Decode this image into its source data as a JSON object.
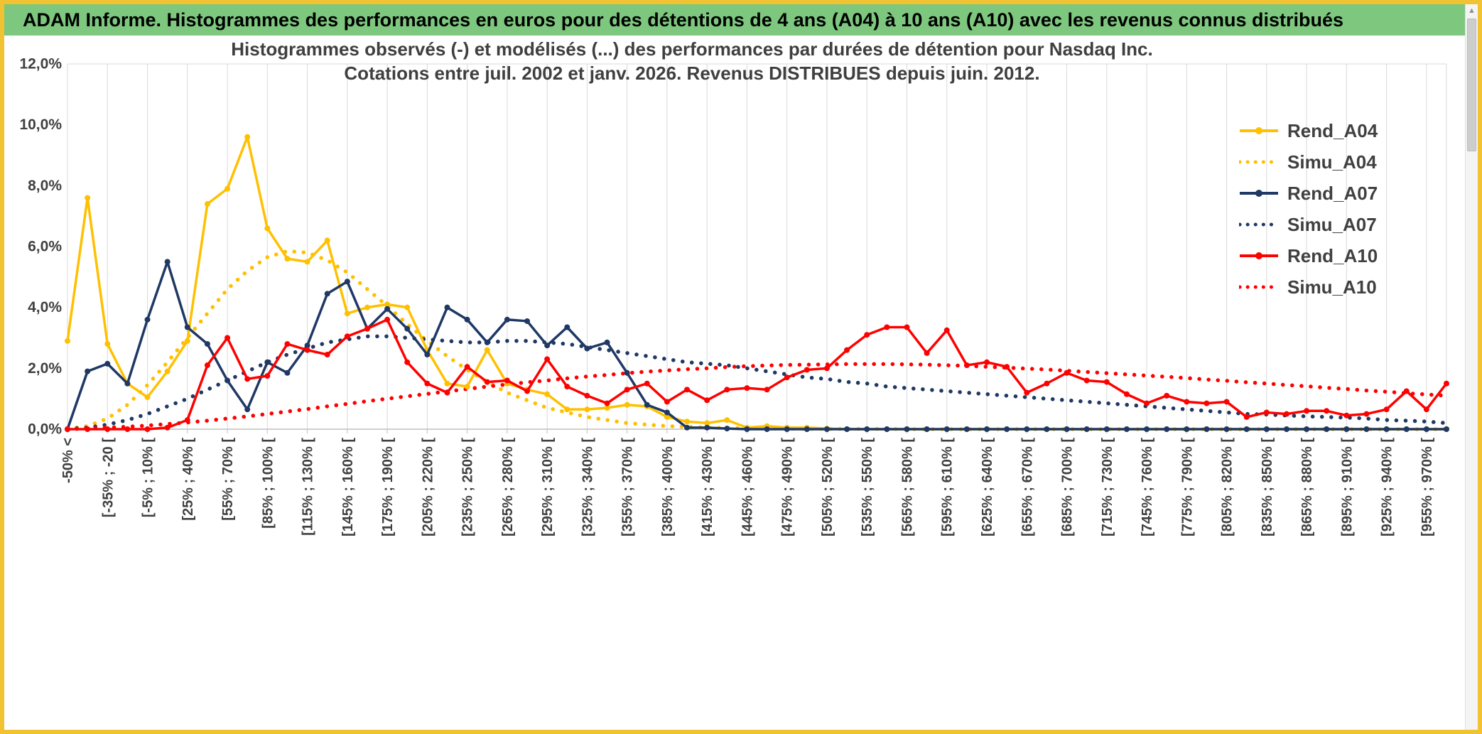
{
  "header": {
    "title": "ADAM Informe. Histogrammes des performances en euros pour des détentions de 4 ans (A04) à 10 ans (A10) avec les revenus connus distribués"
  },
  "colors": {
    "frame_border": "#F1C232",
    "header_bg": "#7DC87E",
    "header_text": "#000000",
    "grid": "#D9D9D9",
    "axis": "#BFBFBF",
    "text": "#404040",
    "gold": "#FFC000",
    "navy": "#1F3864",
    "red": "#FF0000"
  },
  "scrollbar": {
    "up_arrow": "▲"
  },
  "chart_data": {
    "type": "line",
    "title_line1": "Histogrammes observés (-) et modélisés (...) des performances par durées de détention pour Nasdaq Inc.",
    "title_line2": "Cotations entre juil. 2002 et janv. 2026. Revenus DISTRIBUES depuis juin. 2012.",
    "ylim": [
      0,
      12
    ],
    "y_ticks": [
      "12,0%",
      "10,0%",
      "8,0%",
      "6,0%",
      "4,0%",
      "2,0%",
      "0,0%"
    ],
    "grid": "vertical",
    "legend_position": "right",
    "bin_width_pct": 15,
    "bins_per_label": 2,
    "x_tick_labels": [
      "-50% <",
      "[-35% ; -20 [",
      "[-5% ; 10% [",
      "[25% ; 40% [",
      "[55% ; 70% [",
      "[85% ; 100% [",
      "[115% ; 130% [",
      "[145% ; 160% [",
      "[175% ; 190% [",
      "[205% ; 220% [",
      "[235% ; 250% [",
      "[265% ; 280% [",
      "[295% ; 310% [",
      "[325% ; 340% [",
      "[355% ; 370% [",
      "[385% ; 400% [",
      "[415% ; 430% [",
      "[445% ; 460% [",
      "[475% ; 490% [",
      "[505% ; 520% [",
      "[535% ; 550% [",
      "[565% ; 580% [",
      "[595% ; 610% [",
      "[625% ; 640% [",
      "[655% ; 670% [",
      "[685% ; 700% [",
      "[715% ; 730% [",
      "[745% ; 760% [",
      "[775% ; 790% [",
      "[805% ; 820% [",
      "[835% ; 850% [",
      "[865% ; 880% [",
      "[895% ; 910% [",
      "[925% ; 940% [",
      "[955% ; 970% ["
    ],
    "series": [
      {
        "name": "Rend_A04",
        "color": "#FFC000",
        "style": "solid",
        "values": [
          2.9,
          7.6,
          2.8,
          1.5,
          1.05,
          1.9,
          2.9,
          7.4,
          7.9,
          9.6,
          6.6,
          5.6,
          5.5,
          6.2,
          3.8,
          4.0,
          4.1,
          4.0,
          2.6,
          1.5,
          1.4,
          2.6,
          1.5,
          1.3,
          1.15,
          0.65,
          0.65,
          0.7,
          0.8,
          0.75,
          0.4,
          0.25,
          0.2,
          0.3,
          0.05,
          0.1,
          0.05,
          0.05,
          0.02,
          0,
          0,
          0,
          0,
          0,
          0,
          0,
          0,
          0,
          0,
          0,
          0,
          0,
          0,
          0,
          0,
          0,
          0,
          0,
          0,
          0,
          0,
          0,
          0,
          0,
          0,
          0,
          0,
          0,
          0,
          0
        ]
      },
      {
        "name": "Simu_A04",
        "color": "#FFC000",
        "style": "dotted",
        "values": [
          0.02,
          0.1,
          0.35,
          0.8,
          1.45,
          2.2,
          3.0,
          3.8,
          4.6,
          5.2,
          5.65,
          5.85,
          5.8,
          5.55,
          5.15,
          4.6,
          4.05,
          3.45,
          2.9,
          2.4,
          1.95,
          1.55,
          1.2,
          0.95,
          0.7,
          0.55,
          0.4,
          0.3,
          0.2,
          0.15,
          0.1,
          0.08,
          0.05,
          0.04,
          0.03,
          0.02,
          0.02,
          0.01,
          0.01,
          0.01,
          0.01,
          0.01,
          0,
          0,
          0,
          0,
          0,
          0,
          0,
          0,
          0,
          0,
          0,
          0,
          0,
          0,
          0,
          0,
          0,
          0,
          0,
          0,
          0,
          0,
          0,
          0,
          0,
          0,
          0,
          0
        ]
      },
      {
        "name": "Rend_A07",
        "color": "#1F3864",
        "style": "solid",
        "values": [
          0,
          1.9,
          2.15,
          1.5,
          3.6,
          5.5,
          3.35,
          2.8,
          1.6,
          0.65,
          2.2,
          1.85,
          2.75,
          4.45,
          4.85,
          3.3,
          3.95,
          3.3,
          2.45,
          4.0,
          3.6,
          2.85,
          3.6,
          3.55,
          2.75,
          3.35,
          2.65,
          2.85,
          1.85,
          0.8,
          0.55,
          0.05,
          0.05,
          0.02,
          0,
          0,
          0,
          0,
          0,
          0,
          0,
          0,
          0,
          0,
          0,
          0,
          0,
          0,
          0,
          0,
          0,
          0,
          0,
          0,
          0,
          0,
          0,
          0,
          0,
          0,
          0,
          0,
          0,
          0,
          0,
          0,
          0,
          0,
          0,
          0
        ]
      },
      {
        "name": "Simu_A07",
        "color": "#1F3864",
        "style": "dotted",
        "values": [
          0.01,
          0.05,
          0.15,
          0.3,
          0.5,
          0.75,
          1.0,
          1.3,
          1.6,
          1.9,
          2.2,
          2.45,
          2.65,
          2.85,
          2.95,
          3.05,
          3.05,
          3.0,
          2.95,
          2.9,
          2.85,
          2.85,
          2.9,
          2.9,
          2.85,
          2.8,
          2.7,
          2.6,
          2.5,
          2.4,
          2.3,
          2.2,
          2.15,
          2.1,
          2.0,
          1.9,
          1.8,
          1.7,
          1.65,
          1.55,
          1.5,
          1.4,
          1.35,
          1.3,
          1.25,
          1.2,
          1.15,
          1.1,
          1.05,
          1.0,
          0.95,
          0.9,
          0.85,
          0.8,
          0.75,
          0.7,
          0.65,
          0.6,
          0.55,
          0.5,
          0.48,
          0.45,
          0.42,
          0.4,
          0.38,
          0.35,
          0.3,
          0.28,
          0.25,
          0.2
        ]
      },
      {
        "name": "Rend_A10",
        "color": "#FF0000",
        "style": "solid",
        "values": [
          0,
          0,
          0,
          0,
          0,
          0.05,
          0.3,
          2.1,
          3.0,
          1.65,
          1.75,
          2.8,
          2.6,
          2.45,
          3.05,
          3.3,
          3.6,
          2.2,
          1.5,
          1.2,
          2.05,
          1.55,
          1.6,
          1.25,
          2.3,
          1.4,
          1.1,
          0.85,
          1.3,
          1.5,
          0.9,
          1.3,
          0.95,
          1.3,
          1.35,
          1.3,
          1.7,
          1.95,
          2.0,
          2.6,
          3.1,
          3.35,
          3.35,
          2.5,
          3.25,
          2.1,
          2.2,
          2.05,
          1.2,
          1.5,
          1.85,
          1.6,
          1.55,
          1.15,
          0.85,
          1.1,
          0.9,
          0.85,
          0.9,
          0.4,
          0.55,
          0.5,
          0.6,
          0.6,
          0.45,
          0.5,
          0.65,
          1.25,
          0.65,
          1.5
        ]
      },
      {
        "name": "Simu_A10",
        "color": "#FF0000",
        "style": "dotted",
        "values": [
          0,
          0.02,
          0.05,
          0.08,
          0.12,
          0.17,
          0.22,
          0.28,
          0.35,
          0.42,
          0.5,
          0.58,
          0.66,
          0.75,
          0.83,
          0.92,
          1.0,
          1.08,
          1.16,
          1.24,
          1.32,
          1.4,
          1.47,
          1.54,
          1.6,
          1.67,
          1.73,
          1.78,
          1.84,
          1.89,
          1.93,
          1.97,
          2.0,
          2.04,
          2.07,
          2.09,
          2.11,
          2.12,
          2.13,
          2.14,
          2.14,
          2.14,
          2.13,
          2.12,
          2.1,
          2.08,
          2.05,
          2.02,
          1.99,
          1.96,
          1.92,
          1.88,
          1.84,
          1.8,
          1.76,
          1.72,
          1.68,
          1.63,
          1.59,
          1.54,
          1.5,
          1.45,
          1.41,
          1.36,
          1.32,
          1.27,
          1.23,
          1.18,
          1.14,
          1.1
        ]
      }
    ]
  }
}
